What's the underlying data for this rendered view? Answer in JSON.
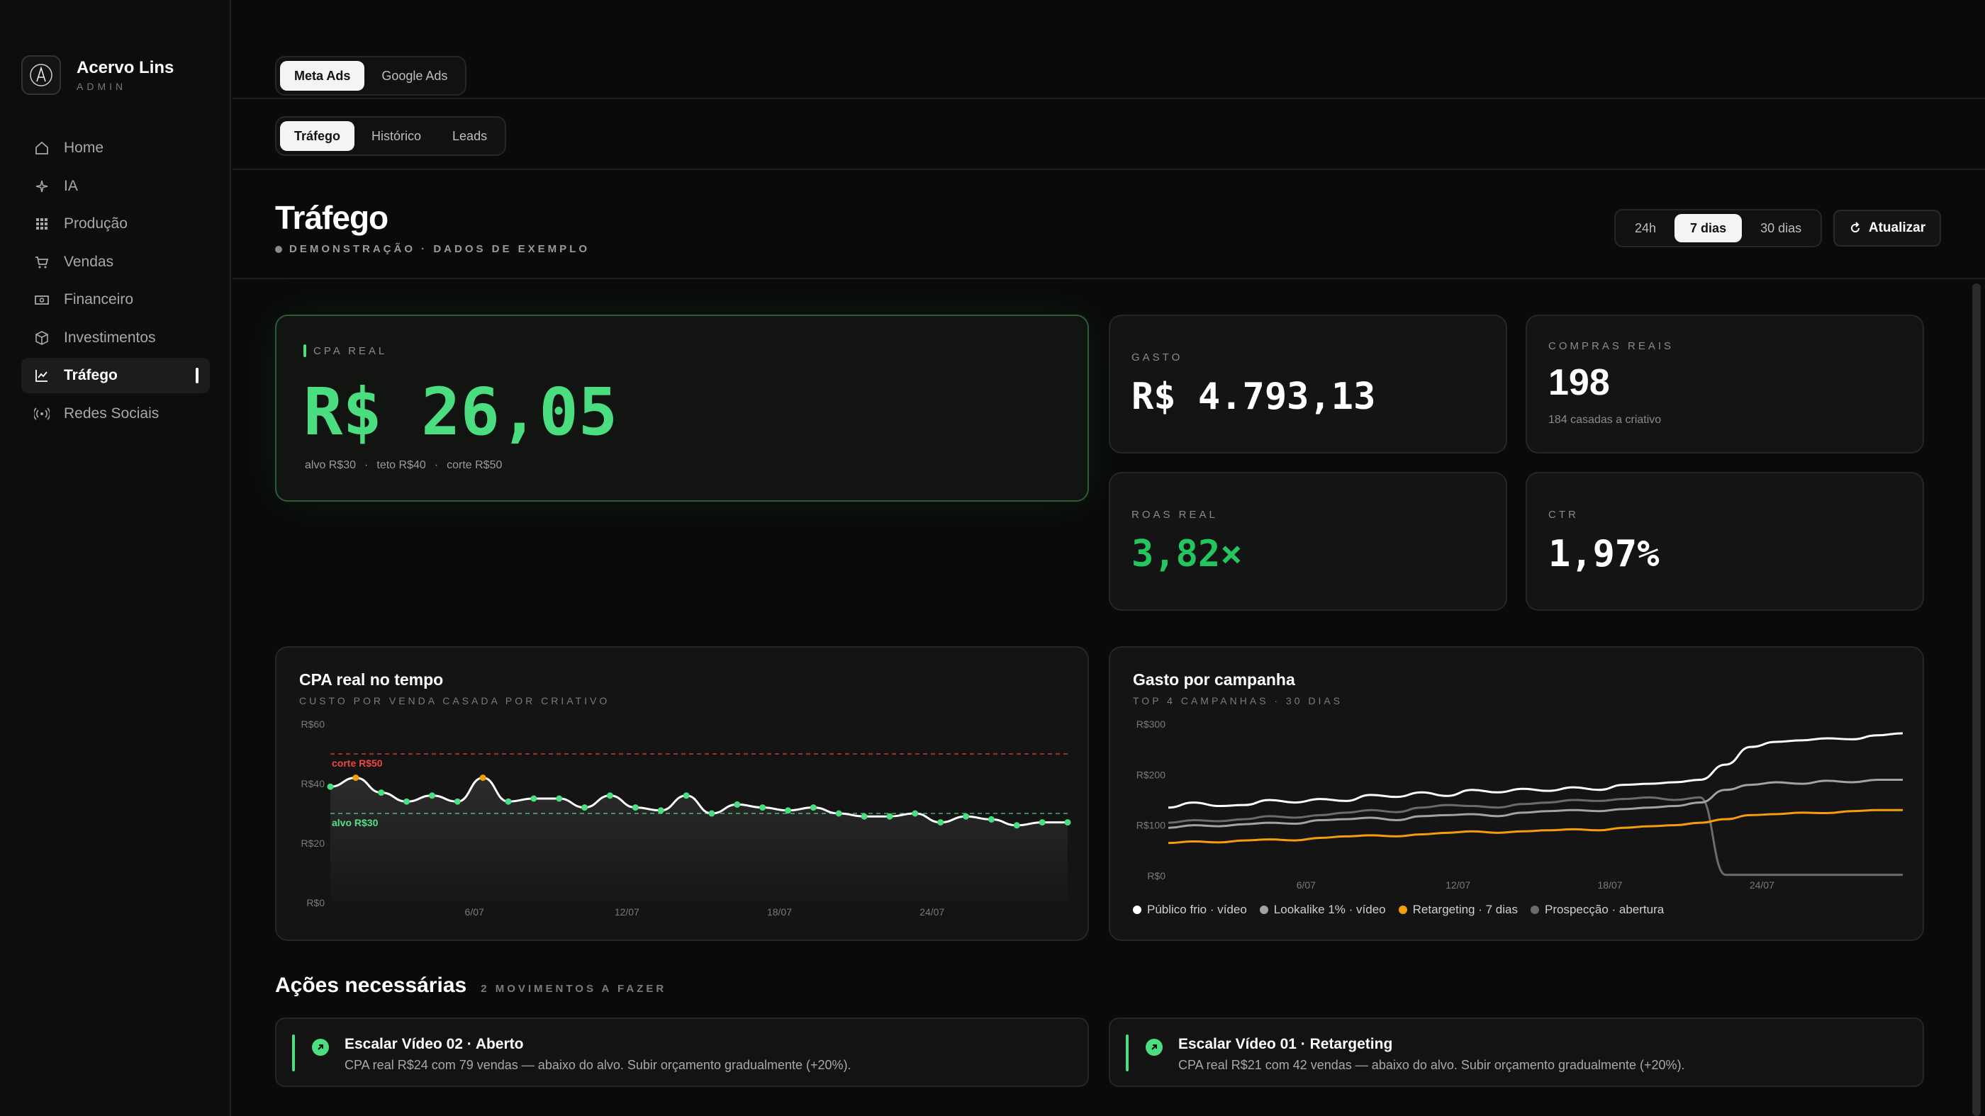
{
  "app": {
    "name": "Acervo Lins",
    "role": "ADMIN"
  },
  "sidebar": {
    "items": [
      {
        "label": "Home",
        "icon": "home-icon"
      },
      {
        "label": "IA",
        "icon": "sparkle-icon"
      },
      {
        "label": "Produção",
        "icon": "grid-icon"
      },
      {
        "label": "Vendas",
        "icon": "cart-icon"
      },
      {
        "label": "Financeiro",
        "icon": "banknote-icon"
      },
      {
        "label": "Investimentos",
        "icon": "box-icon"
      },
      {
        "label": "Tráfego",
        "icon": "chart-line-icon",
        "active": true
      },
      {
        "label": "Redes Sociais",
        "icon": "broadcast-icon"
      }
    ]
  },
  "platform_tabs": [
    "Meta Ads",
    "Google Ads"
  ],
  "section_tabs": [
    "Tráfego",
    "Histórico",
    "Leads"
  ],
  "header": {
    "title": "Tráfego",
    "subtitle": "DEMONSTRAÇÃO · DADOS DE EXEMPLO",
    "ranges": [
      "24h",
      "7 dias",
      "30 dias"
    ],
    "active_range": "7 dias",
    "refresh_label": "Atualizar"
  },
  "kpis": {
    "cpa": {
      "label": "CPA REAL",
      "value": "R$ 26,05",
      "alvo": "alvo R$30",
      "teto": "teto R$40",
      "corte": "corte R$50",
      "sep": "·"
    },
    "gasto": {
      "label": "GASTO",
      "value": "R$ 4.793,13"
    },
    "compras": {
      "label": "COMPRAS REAIS",
      "value": "198",
      "sub": "184 casadas a criativo"
    },
    "roas": {
      "label": "ROAS REAL",
      "value": "3,82×"
    },
    "ctr": {
      "label": "CTR",
      "value": "1,97%"
    }
  },
  "colors": {
    "accent_green": "#4ade80",
    "red": "#ef4444",
    "orange": "#f59e0b",
    "bg": "#0a0a0a",
    "card": "#141414"
  },
  "chart_data": [
    {
      "type": "line",
      "title": "CPA real no tempo",
      "subtitle": "CUSTO POR VENDA CASADA POR CRIATIVO",
      "y_ticks": [
        "R$60",
        "R$40",
        "R$20",
        "R$0"
      ],
      "x_ticks": [
        "6/07",
        "12/07",
        "18/07",
        "24/07"
      ],
      "ylim": [
        0,
        60
      ],
      "reference_lines": [
        {
          "label": "corte R$50",
          "value": 50,
          "color": "#ef4444"
        },
        {
          "label": "alvo R$30",
          "value": 30,
          "color": "#4ade80"
        }
      ],
      "series": [
        {
          "values": [
            39,
            42,
            37,
            34,
            36,
            34,
            42,
            34,
            35,
            35,
            32,
            36,
            32,
            31,
            36,
            30,
            33,
            32,
            31,
            32,
            30,
            29,
            29,
            30,
            27,
            29,
            28,
            26,
            27,
            27
          ]
        }
      ]
    },
    {
      "type": "line",
      "title": "Gasto por campanha",
      "subtitle": "TOP 4 CAMPANHAS · 30 DIAS",
      "y_ticks": [
        "R$300",
        "R$200",
        "R$100",
        "R$0"
      ],
      "x_ticks": [
        "6/07",
        "12/07",
        "18/07",
        "24/07"
      ],
      "ylim": [
        0,
        300
      ],
      "legend": [
        "Público frio · vídeo",
        "Lookalike 1% · vídeo",
        "Retargeting · 7 dias",
        "Prospecção · abertura"
      ],
      "series": [
        {
          "name": "Público frio · vídeo",
          "color": "#ffffff",
          "values": [
            135,
            145,
            138,
            140,
            150,
            145,
            152,
            148,
            160,
            156,
            165,
            158,
            170,
            165,
            172,
            168,
            175,
            170,
            180,
            182,
            185,
            190,
            220,
            255,
            265,
            268,
            272,
            270,
            278,
            282
          ]
        },
        {
          "name": "Lookalike 1% · vídeo",
          "color": "#a3a3a3",
          "values": [
            95,
            100,
            98,
            102,
            105,
            103,
            110,
            112,
            115,
            110,
            118,
            120,
            122,
            118,
            125,
            128,
            130,
            128,
            132,
            135,
            138,
            145,
            170,
            180,
            185,
            182,
            188,
            185,
            190,
            190
          ]
        },
        {
          "name": "Retargeting · 7 dias",
          "color": "#f59e0b",
          "values": [
            65,
            68,
            66,
            70,
            72,
            70,
            75,
            78,
            80,
            78,
            82,
            85,
            88,
            85,
            88,
            90,
            92,
            90,
            95,
            98,
            100,
            105,
            112,
            120,
            122,
            125,
            124,
            128,
            130,
            130
          ]
        },
        {
          "name": "Prospecção · abertura",
          "color": "#6b6b6b",
          "values": [
            105,
            110,
            108,
            112,
            118,
            115,
            120,
            125,
            130,
            126,
            135,
            140,
            138,
            135,
            142,
            145,
            150,
            148,
            152,
            155,
            150,
            155,
            2,
            2,
            2,
            2,
            2,
            2,
            2,
            2
          ]
        }
      ]
    }
  ],
  "actions": {
    "title": "Ações necessárias",
    "subtitle": "2 MOVIMENTOS A FAZER",
    "items": [
      {
        "title": "Escalar Vídeo 02 · Aberto",
        "desc": "CPA real R$24 com 79 vendas — abaixo do alvo. Subir orçamento gradualmente (+20%)."
      },
      {
        "title": "Escalar Vídeo 01 · Retargeting",
        "desc": "CPA real R$21 com 42 vendas — abaixo do alvo. Subir orçamento gradualmente (+20%)."
      }
    ]
  }
}
